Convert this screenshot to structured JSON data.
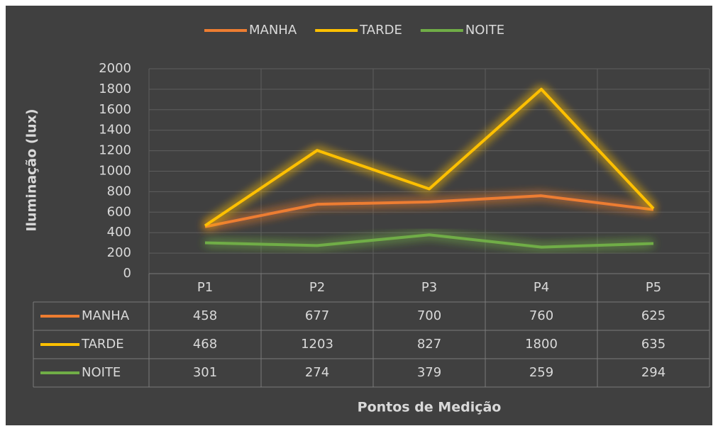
{
  "chart_data": {
    "type": "line",
    "y_label": "Iluminação (lux)",
    "x_label": "Pontos de Medição",
    "categories": [
      "P1",
      "P2",
      "P3",
      "P4",
      "P5"
    ],
    "series": [
      {
        "name": "MANHA",
        "color": "#ed7d31",
        "values": [
          458,
          677,
          700,
          760,
          625
        ]
      },
      {
        "name": "TARDE",
        "color": "#ffc000",
        "values": [
          468,
          1203,
          827,
          1800,
          635
        ]
      },
      {
        "name": "NOITE",
        "color": "#70ad47",
        "values": [
          301,
          274,
          379,
          259,
          294
        ]
      }
    ],
    "ylim": [
      0,
      2000
    ],
    "yticks": [
      0,
      200,
      400,
      600,
      800,
      1000,
      1200,
      1400,
      1600,
      1800,
      2000
    ],
    "grid": true,
    "legend": "top"
  }
}
